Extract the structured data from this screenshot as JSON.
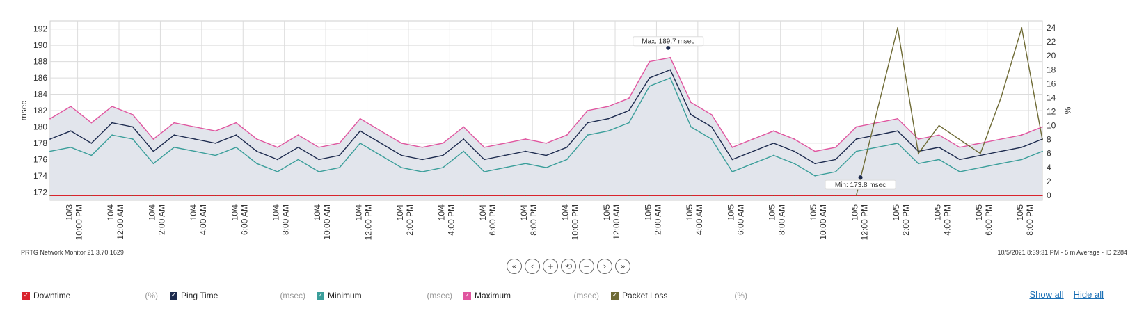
{
  "chart_data": {
    "type": "line",
    "title": "",
    "ylabel_left": "msec",
    "ylabel_right": "%",
    "ylim_left": [
      171,
      193
    ],
    "ylim_right": [
      -0.7,
      25
    ],
    "yticks_left": [
      "192",
      "190",
      "188",
      "186",
      "184",
      "182",
      "180",
      "178",
      "176",
      "174",
      "172"
    ],
    "yticks_right": [
      "24",
      "22",
      "20",
      "18",
      "16",
      "14",
      "12",
      "10",
      "8",
      "6",
      "4",
      "2",
      "0"
    ],
    "grid": true,
    "x_range": [
      "10/3 8:40 PM",
      "10/5 8:40 PM"
    ],
    "xticks": [
      {
        "date": "10/3",
        "time": "10:00 PM"
      },
      {
        "date": "10/4",
        "time": "12:00 AM"
      },
      {
        "date": "10/4",
        "time": "2:00 AM"
      },
      {
        "date": "10/4",
        "time": "4:00 AM"
      },
      {
        "date": "10/4",
        "time": "6:00 AM"
      },
      {
        "date": "10/4",
        "time": "8:00 AM"
      },
      {
        "date": "10/4",
        "time": "10:00 AM"
      },
      {
        "date": "10/4",
        "time": "12:00 PM"
      },
      {
        "date": "10/4",
        "time": "2:00 PM"
      },
      {
        "date": "10/4",
        "time": "4:00 PM"
      },
      {
        "date": "10/4",
        "time": "6:00 PM"
      },
      {
        "date": "10/4",
        "time": "8:00 PM"
      },
      {
        "date": "10/4",
        "time": "10:00 PM"
      },
      {
        "date": "10/5",
        "time": "12:00 AM"
      },
      {
        "date": "10/5",
        "time": "2:00 AM"
      },
      {
        "date": "10/5",
        "time": "4:00 AM"
      },
      {
        "date": "10/5",
        "time": "6:00 AM"
      },
      {
        "date": "10/5",
        "time": "8:00 AM"
      },
      {
        "date": "10/5",
        "time": "10:00 AM"
      },
      {
        "date": "10/5",
        "time": "12:00 PM"
      },
      {
        "date": "10/5",
        "time": "2:00 PM"
      },
      {
        "date": "10/5",
        "time": "4:00 PM"
      },
      {
        "date": "10/5",
        "time": "6:00 PM"
      },
      {
        "date": "10/5",
        "time": "8:00 PM"
      }
    ],
    "series_hours": [
      0,
      1,
      2,
      3,
      4,
      5,
      6,
      7,
      8,
      9,
      10,
      11,
      12,
      13,
      14,
      15,
      16,
      17,
      18,
      19,
      20,
      21,
      22,
      23,
      24,
      25,
      26,
      27,
      28,
      29,
      30,
      31,
      32,
      33,
      34,
      35,
      36,
      37,
      38,
      39,
      40,
      41,
      42,
      43,
      44,
      45,
      46,
      47,
      48
    ],
    "series": [
      {
        "name": "Downtime",
        "unit": "%",
        "axis": "right",
        "color": "#d9232d",
        "values": [
          0,
          0,
          0,
          0,
          0,
          0,
          0,
          0,
          0,
          0,
          0,
          0,
          0,
          0,
          0,
          0,
          0,
          0,
          0,
          0,
          0,
          0,
          0,
          0,
          0,
          0,
          0,
          0,
          0,
          0,
          0,
          0,
          0,
          0,
          0,
          0,
          0,
          0,
          0,
          0,
          0,
          0,
          0,
          0,
          0,
          0,
          0,
          0,
          0
        ]
      },
      {
        "name": "Ping Time",
        "unit": "msec",
        "axis": "left",
        "color": "#1c2a4e",
        "values": [
          178.5,
          179.5,
          178.0,
          180.5,
          180.0,
          177.0,
          179.0,
          178.5,
          178.0,
          179.0,
          177.0,
          176.0,
          177.5,
          176.0,
          176.5,
          179.5,
          178.0,
          176.5,
          176.0,
          176.5,
          178.5,
          176.0,
          176.5,
          177.0,
          176.5,
          177.5,
          180.5,
          181.0,
          182.0,
          186.0,
          187.0,
          181.5,
          180.0,
          176.0,
          177.0,
          178.0,
          177.0,
          175.5,
          176.0,
          178.5,
          179.0,
          179.5,
          177.0,
          177.5,
          176.0,
          176.5,
          177.0,
          177.5,
          178.5
        ]
      },
      {
        "name": "Minimum",
        "unit": "msec",
        "axis": "left",
        "color": "#3a9e9a",
        "values": [
          177.0,
          177.5,
          176.5,
          179.0,
          178.5,
          175.5,
          177.5,
          177.0,
          176.5,
          177.5,
          175.5,
          174.5,
          176.0,
          174.5,
          175.0,
          178.0,
          176.5,
          175.0,
          174.5,
          175.0,
          177.0,
          174.5,
          175.0,
          175.5,
          175.0,
          176.0,
          179.0,
          179.5,
          180.5,
          185.0,
          186.0,
          180.0,
          178.5,
          174.5,
          175.5,
          176.5,
          175.5,
          174.0,
          174.5,
          177.0,
          177.5,
          178.0,
          175.5,
          176.0,
          174.5,
          175.0,
          175.5,
          176.0,
          177.0
        ]
      },
      {
        "name": "Maximum",
        "unit": "msec",
        "axis": "left",
        "color": "#e0559f",
        "values": [
          181.0,
          182.5,
          180.5,
          182.5,
          181.5,
          178.5,
          180.5,
          180.0,
          179.5,
          180.5,
          178.5,
          177.5,
          179.0,
          177.5,
          178.0,
          181.0,
          179.5,
          178.0,
          177.5,
          178.0,
          180.0,
          177.5,
          178.0,
          178.5,
          178.0,
          179.0,
          182.0,
          182.5,
          183.5,
          188.0,
          188.5,
          183.0,
          181.5,
          177.5,
          178.5,
          179.5,
          178.5,
          177.0,
          177.5,
          180.0,
          180.5,
          181.0,
          178.5,
          179.0,
          177.5,
          178.0,
          178.5,
          179.0,
          180.0
        ]
      },
      {
        "name": "Packet Loss",
        "unit": "%",
        "axis": "right",
        "color": "#6e6a34",
        "values": [
          0,
          0,
          0,
          0,
          0,
          0,
          0,
          0,
          0,
          0,
          0,
          0,
          0,
          0,
          0,
          0,
          0,
          0,
          0,
          0,
          0,
          0,
          0,
          0,
          0,
          0,
          0,
          0,
          0,
          0,
          0,
          0,
          0,
          0,
          0,
          0,
          0,
          0,
          0,
          0,
          12,
          24,
          6,
          10,
          8,
          6,
          14,
          24,
          8
        ]
      }
    ],
    "annotations": [
      {
        "text": "Max: 189.7 msec",
        "hour": 29.9,
        "value": 189.7
      },
      {
        "text": "Min: 173.8 msec",
        "hour": 39.2,
        "value": 173.8
      }
    ],
    "legend_placement": "bottom"
  },
  "footer": {
    "product": "PRTG Network Monitor 21.3.70.1629",
    "info": "10/5/2021 8:39:31 PM - 5 m Average - ID 2284"
  },
  "nav": {
    "first": "«",
    "prev": "‹",
    "zoom_in": "+",
    "reset": "⟲",
    "zoom_out": "−",
    "next": "›",
    "last": "»"
  },
  "legend": [
    {
      "name": "Downtime",
      "unit": "(%)",
      "color": "#d9232d"
    },
    {
      "name": "Ping Time",
      "unit": "(msec)",
      "color": "#1c2a4e"
    },
    {
      "name": "Minimum",
      "unit": "(msec)",
      "color": "#3a9e9a"
    },
    {
      "name": "Maximum",
      "unit": "(msec)",
      "color": "#e0559f"
    },
    {
      "name": "Packet Loss",
      "unit": "(%)",
      "color": "#6e6a34"
    }
  ],
  "links": {
    "show_all": "Show all",
    "hide_all": "Hide all"
  }
}
